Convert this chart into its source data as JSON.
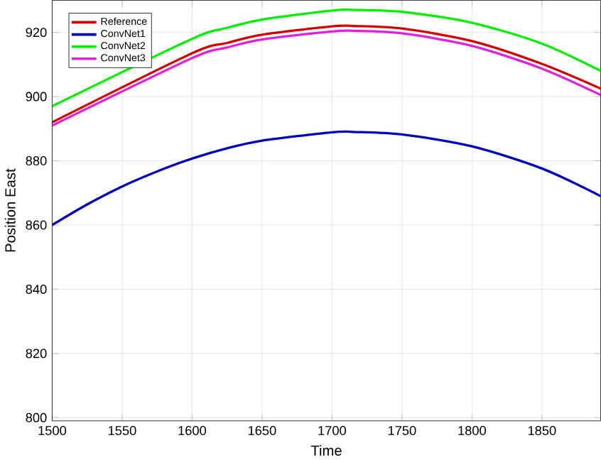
{
  "chart_data": {
    "type": "line",
    "xlabel": "Time",
    "ylabel": "Position East",
    "xlim": [
      1500,
      1892
    ],
    "ylim": [
      799,
      930
    ],
    "xticks": [
      1500,
      1550,
      1600,
      1650,
      1700,
      1750,
      1800,
      1850
    ],
    "yticks": [
      800,
      820,
      840,
      860,
      880,
      900,
      920
    ],
    "grid": true,
    "legend": "top left",
    "line_style": "solid",
    "x": [
      1500,
      1600,
      1625,
      1650,
      1700,
      1715,
      1750,
      1800,
      1850,
      1892
    ],
    "series": [
      {
        "name": "Reference",
        "color": "#d40000",
        "values": [
          892,
          913.5,
          916.7,
          919.3,
          921.9,
          922,
          921.2,
          917.3,
          910.2,
          902.5
        ]
      },
      {
        "name": "ConvNet1",
        "color": "#0000c0",
        "x": [
          1500,
          1525,
          1550,
          1575,
          1600,
          1625,
          1650,
          1700,
          1715,
          1750,
          1800,
          1850,
          1892
        ],
        "values": [
          860,
          866.4,
          872,
          876.7,
          880.7,
          883.9,
          886.3,
          888.9,
          889,
          888.2,
          884.5,
          877.6,
          869
        ]
      },
      {
        "name": "ConvNet2",
        "color": "#00f000",
        "values": [
          897,
          918,
          921.4,
          924,
          926.8,
          927,
          926.4,
          923,
          916.5,
          908
        ]
      },
      {
        "name": "ConvNet3",
        "color": "#e020e0",
        "values": [
          891,
          912,
          915.3,
          917.8,
          920.3,
          920.5,
          919.7,
          915.8,
          908.7,
          900.5
        ]
      }
    ]
  }
}
